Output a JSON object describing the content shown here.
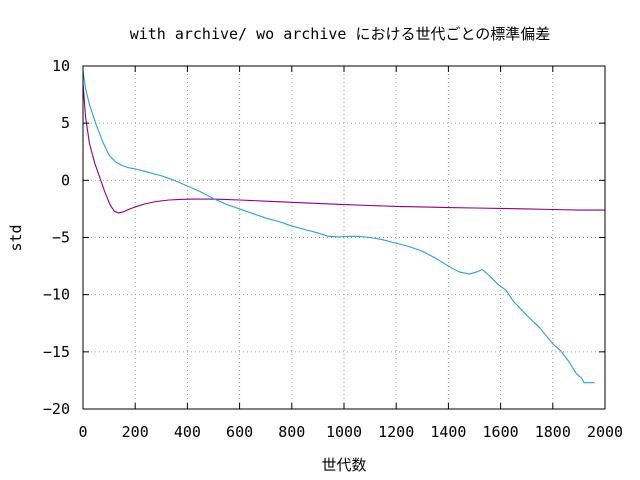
{
  "chart_data": {
    "type": "line",
    "title": "with archive/ wo archive における世代ごとの標準偏差",
    "xlabel": "世代数",
    "ylabel": "std",
    "xlim": [
      0,
      2000
    ],
    "ylim": [
      -20,
      10
    ],
    "xticks": [
      0,
      200,
      400,
      600,
      800,
      1000,
      1200,
      1400,
      1600,
      1800,
      2000
    ],
    "yticks": [
      -20,
      -15,
      -10,
      -5,
      0,
      5,
      10
    ],
    "grid": true,
    "grid_style": "dotted",
    "colors": {
      "series_1": "#8b008b",
      "series_2": "#2a9fd0",
      "axes": "#000000",
      "grid": "#a0a0a0"
    },
    "series": [
      {
        "values": [
          [
            0,
            8.5
          ],
          [
            10,
            5.5
          ],
          [
            25,
            3.2
          ],
          [
            45,
            1.5
          ],
          [
            65,
            0.2
          ],
          [
            85,
            -1.1
          ],
          [
            105,
            -2.2
          ],
          [
            120,
            -2.7
          ],
          [
            135,
            -2.85
          ],
          [
            155,
            -2.75
          ],
          [
            180,
            -2.5
          ],
          [
            210,
            -2.25
          ],
          [
            240,
            -2.05
          ],
          [
            280,
            -1.85
          ],
          [
            330,
            -1.72
          ],
          [
            380,
            -1.66
          ],
          [
            430,
            -1.64
          ],
          [
            480,
            -1.64
          ],
          [
            530,
            -1.66
          ],
          [
            600,
            -1.72
          ],
          [
            700,
            -1.82
          ],
          [
            800,
            -1.92
          ],
          [
            900,
            -2.02
          ],
          [
            1000,
            -2.12
          ],
          [
            1100,
            -2.2
          ],
          [
            1200,
            -2.28
          ],
          [
            1300,
            -2.33
          ],
          [
            1400,
            -2.38
          ],
          [
            1500,
            -2.42
          ],
          [
            1600,
            -2.46
          ],
          [
            1700,
            -2.5
          ],
          [
            1800,
            -2.55
          ],
          [
            1900,
            -2.6
          ],
          [
            2000,
            -2.6
          ]
        ]
      },
      {
        "values": [
          [
            0,
            9.6
          ],
          [
            10,
            8.0
          ],
          [
            25,
            6.6
          ],
          [
            50,
            4.9
          ],
          [
            75,
            3.4
          ],
          [
            100,
            2.2
          ],
          [
            125,
            1.6
          ],
          [
            150,
            1.3
          ],
          [
            175,
            1.1
          ],
          [
            200,
            1.0
          ],
          [
            250,
            0.7
          ],
          [
            300,
            0.4
          ],
          [
            350,
            0.0
          ],
          [
            400,
            -0.5
          ],
          [
            450,
            -1.0
          ],
          [
            500,
            -1.6
          ],
          [
            550,
            -2.1
          ],
          [
            600,
            -2.5
          ],
          [
            650,
            -2.9
          ],
          [
            700,
            -3.3
          ],
          [
            750,
            -3.6
          ],
          [
            800,
            -4.0
          ],
          [
            850,
            -4.3
          ],
          [
            900,
            -4.6
          ],
          [
            940,
            -4.9
          ],
          [
            980,
            -4.95
          ],
          [
            1020,
            -4.9
          ],
          [
            1060,
            -4.9
          ],
          [
            1100,
            -5.0
          ],
          [
            1150,
            -5.2
          ],
          [
            1200,
            -5.5
          ],
          [
            1250,
            -5.8
          ],
          [
            1300,
            -6.2
          ],
          [
            1350,
            -6.8
          ],
          [
            1400,
            -7.5
          ],
          [
            1440,
            -8.0
          ],
          [
            1480,
            -8.2
          ],
          [
            1510,
            -8.0
          ],
          [
            1530,
            -7.8
          ],
          [
            1560,
            -8.4
          ],
          [
            1590,
            -9.1
          ],
          [
            1620,
            -9.6
          ],
          [
            1650,
            -10.6
          ],
          [
            1700,
            -11.8
          ],
          [
            1750,
            -12.9
          ],
          [
            1800,
            -14.3
          ],
          [
            1830,
            -14.9
          ],
          [
            1860,
            -15.8
          ],
          [
            1890,
            -16.9
          ],
          [
            1910,
            -17.3
          ],
          [
            1920,
            -17.7
          ],
          [
            1960,
            -17.7
          ]
        ]
      }
    ]
  }
}
